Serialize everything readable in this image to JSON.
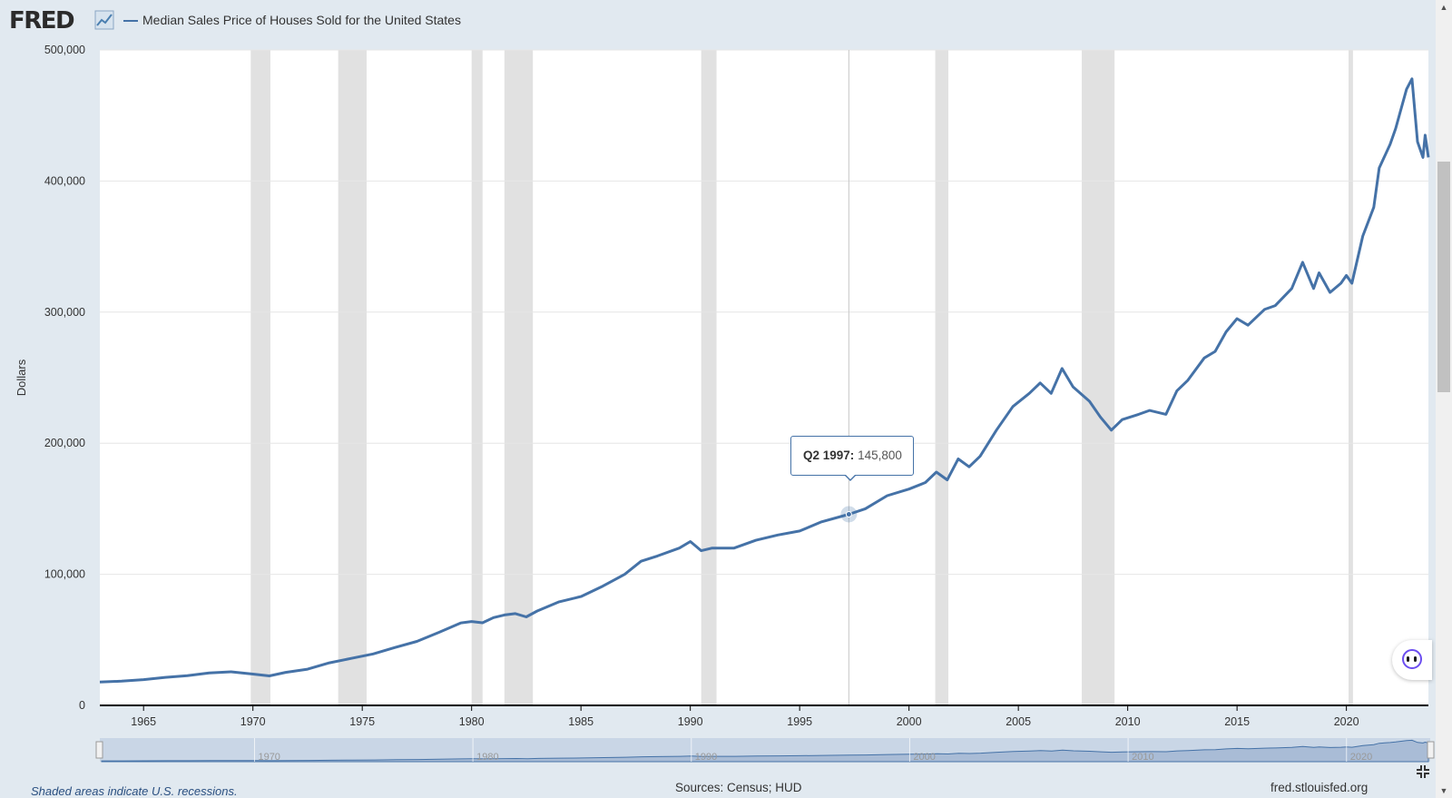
{
  "header": {
    "logo": "FRED",
    "series_title": "Median Sales Price of Houses Sold for the United States"
  },
  "tooltip": {
    "date": "Q2 1997:",
    "value": "145,800"
  },
  "footer": {
    "note": "Shaded areas indicate U.S. recessions.",
    "source": "Sources: Census; HUD",
    "site": "fred.stlouisfed.org"
  },
  "icons": {
    "logo_spark": "line-chart-icon",
    "assistant": "assistant-icon",
    "fullscreen": "fullscreen-icon"
  },
  "colors": {
    "series": "#4572a7",
    "recession": "#e1e1e1",
    "background": "#e1e9f0",
    "plot": "#ffffff",
    "navigator_fill": "#a9bcd6"
  },
  "chart_data": {
    "type": "line",
    "title": "",
    "xlabel": "",
    "ylabel": "Dollars",
    "xlim": [
      1963.0,
      2023.75
    ],
    "ylim": [
      0,
      500000
    ],
    "y_ticks": [
      0,
      100000,
      200000,
      300000,
      400000,
      500000
    ],
    "y_tick_labels": [
      "0",
      "100,000",
      "200,000",
      "300,000",
      "400,000",
      "500,000"
    ],
    "x_ticks": [
      1965,
      1970,
      1975,
      1980,
      1985,
      1990,
      1995,
      2000,
      2005,
      2010,
      2015,
      2020
    ],
    "x_tick_labels": [
      "1965",
      "1970",
      "1975",
      "1980",
      "1985",
      "1990",
      "1995",
      "2000",
      "2005",
      "2010",
      "2015",
      "2020"
    ],
    "navigator_tick_labels": [
      "1970",
      "1980",
      "1990",
      "2000",
      "2010",
      "2020"
    ],
    "grid": true,
    "highlight": {
      "x": 1997.25,
      "y": 145800
    },
    "recessions": [
      [
        1969.9,
        1970.8
      ],
      [
        1973.9,
        1975.2
      ],
      [
        1980.0,
        1980.5
      ],
      [
        1981.5,
        1982.8
      ],
      [
        1990.5,
        1991.2
      ],
      [
        2001.2,
        2001.8
      ],
      [
        2007.9,
        2009.4
      ],
      [
        2020.1,
        2020.3
      ]
    ],
    "series": [
      {
        "values": [
          [
            1963.0,
            17800
          ],
          [
            1964.0,
            18500
          ],
          [
            1965.0,
            19700
          ],
          [
            1966.0,
            21400
          ],
          [
            1967.0,
            22700
          ],
          [
            1968.0,
            24700
          ],
          [
            1969.0,
            25600
          ],
          [
            1970.0,
            23900
          ],
          [
            1970.75,
            22500
          ],
          [
            1971.5,
            25200
          ],
          [
            1972.5,
            27600
          ],
          [
            1973.5,
            32500
          ],
          [
            1974.5,
            35900
          ],
          [
            1975.5,
            39300
          ],
          [
            1976.5,
            44200
          ],
          [
            1977.5,
            48800
          ],
          [
            1978.5,
            55700
          ],
          [
            1979.5,
            62900
          ],
          [
            1980.0,
            64000
          ],
          [
            1980.5,
            63000
          ],
          [
            1981.0,
            67000
          ],
          [
            1981.5,
            69000
          ],
          [
            1982.0,
            70000
          ],
          [
            1982.5,
            67500
          ],
          [
            1983.0,
            72000
          ],
          [
            1984.0,
            79000
          ],
          [
            1985.0,
            83000
          ],
          [
            1986.0,
            91000
          ],
          [
            1987.0,
            100000
          ],
          [
            1987.75,
            110000
          ],
          [
            1988.5,
            114000
          ],
          [
            1989.5,
            120000
          ],
          [
            1990.0,
            125000
          ],
          [
            1990.5,
            118000
          ],
          [
            1991.0,
            120000
          ],
          [
            1992.0,
            120000
          ],
          [
            1993.0,
            126000
          ],
          [
            1994.0,
            130000
          ],
          [
            1995.0,
            133000
          ],
          [
            1996.0,
            140000
          ],
          [
            1997.25,
            145800
          ],
          [
            1998.0,
            150000
          ],
          [
            1999.0,
            160000
          ],
          [
            2000.0,
            165000
          ],
          [
            2000.75,
            170000
          ],
          [
            2001.25,
            178000
          ],
          [
            2001.75,
            172000
          ],
          [
            2002.25,
            188000
          ],
          [
            2002.75,
            182000
          ],
          [
            2003.25,
            190000
          ],
          [
            2004.0,
            210000
          ],
          [
            2004.75,
            228000
          ],
          [
            2005.5,
            238000
          ],
          [
            2006.0,
            246000
          ],
          [
            2006.5,
            238000
          ],
          [
            2007.0,
            257000
          ],
          [
            2007.5,
            243000
          ],
          [
            2008.25,
            232000
          ],
          [
            2008.75,
            220000
          ],
          [
            2009.25,
            210000
          ],
          [
            2009.75,
            218000
          ],
          [
            2010.5,
            222000
          ],
          [
            2011.0,
            225000
          ],
          [
            2011.75,
            222000
          ],
          [
            2012.25,
            240000
          ],
          [
            2012.75,
            248000
          ],
          [
            2013.5,
            265000
          ],
          [
            2014.0,
            270000
          ],
          [
            2014.5,
            285000
          ],
          [
            2015.0,
            295000
          ],
          [
            2015.5,
            290000
          ],
          [
            2016.25,
            302000
          ],
          [
            2016.75,
            305000
          ],
          [
            2017.5,
            318000
          ],
          [
            2018.0,
            338000
          ],
          [
            2018.5,
            318000
          ],
          [
            2018.75,
            330000
          ],
          [
            2019.25,
            315000
          ],
          [
            2019.75,
            322000
          ],
          [
            2020.0,
            328000
          ],
          [
            2020.25,
            322000
          ],
          [
            2020.75,
            358000
          ],
          [
            2021.25,
            380000
          ],
          [
            2021.5,
            410000
          ],
          [
            2022.0,
            428000
          ],
          [
            2022.25,
            440000
          ],
          [
            2022.75,
            470000
          ],
          [
            2023.0,
            478000
          ],
          [
            2023.25,
            430000
          ],
          [
            2023.5,
            418000
          ],
          [
            2023.6,
            435000
          ],
          [
            2023.75,
            418000
          ]
        ]
      }
    ]
  }
}
